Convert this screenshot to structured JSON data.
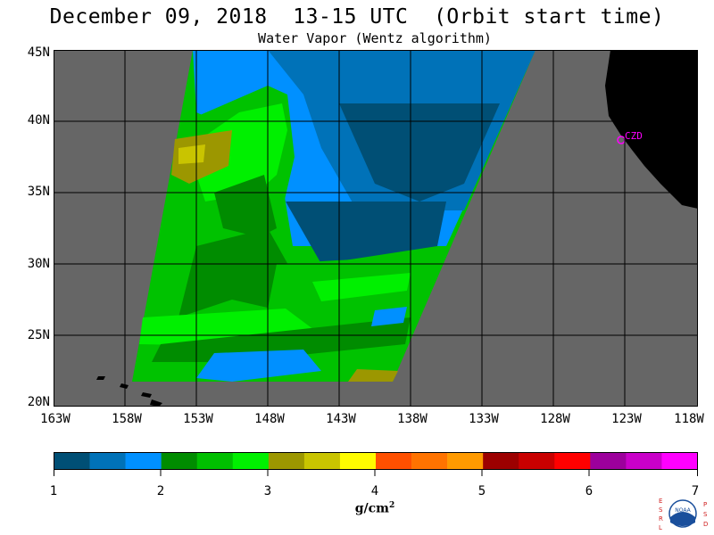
{
  "title": "December 09, 2018  13-15 UTC  (Orbit start time)",
  "subtitle": "Water Vapor (Wentz algorithm)",
  "map": {
    "lat_labels": [
      "45N",
      "40N",
      "35N",
      "30N",
      "25N",
      "20N"
    ],
    "lon_labels": [
      "163W",
      "158W",
      "153W",
      "148W",
      "143W",
      "138W",
      "133W",
      "128W",
      "123W",
      "118W"
    ],
    "station_label": "CZD",
    "colors": {
      "nodata": "#666666",
      "land": "#000000",
      "station": "#ff00ff",
      "grid": "#000000"
    }
  },
  "colorbar": {
    "tick_labels": [
      "1",
      "2",
      "3",
      "4",
      "5",
      "6",
      "7"
    ],
    "units": "g/cm",
    "units_sup": "2",
    "colors": [
      "#004f75",
      "#0072b8",
      "#0090ff",
      "#008c00",
      "#00bf00",
      "#00f000",
      "#9c9700",
      "#c9c400",
      "#fffc00",
      "#ff5000",
      "#ff7300",
      "#ff9a00",
      "#9c0000",
      "#c90000",
      "#ff0000",
      "#9c009c",
      "#c900c9",
      "#ff00ff"
    ]
  },
  "logo": {
    "left_letters": "ESRL",
    "right_letters": "PSD",
    "center_text": "NOAA"
  }
}
